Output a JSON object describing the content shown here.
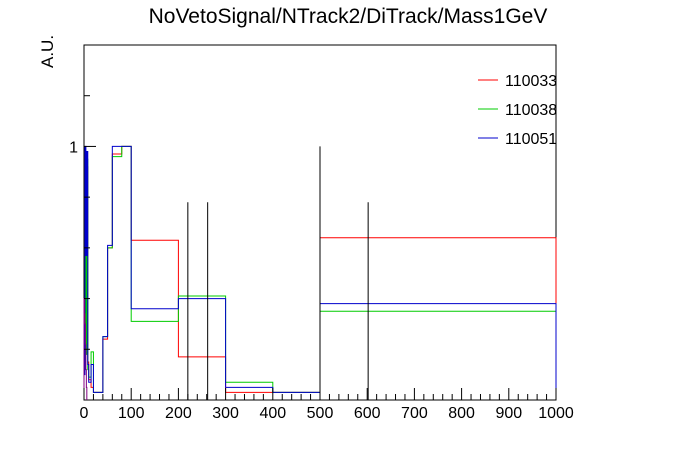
{
  "chart_data": {
    "type": "histogram",
    "title": "NoVetoSignal/NTrack2/DiTrack/Mass1GeV",
    "xlabel": "",
    "ylabel": "A.U.",
    "xlim": [
      0,
      1000
    ],
    "ylim": [
      0,
      1.4
    ],
    "x_ticks": [
      0,
      100,
      200,
      300,
      400,
      500,
      600,
      700,
      800,
      900,
      1000
    ],
    "y_ticks": [
      1
    ],
    "legend_position": "top-right",
    "series": [
      {
        "name": "110033",
        "color": "#ff0000",
        "bins": [
          {
            "x0": 0,
            "x1": 2,
            "y": 0.12
          },
          {
            "x0": 2,
            "x1": 4,
            "y": 0.98
          },
          {
            "x0": 4,
            "x1": 6,
            "y": 0.2
          },
          {
            "x0": 6,
            "x1": 8,
            "y": 0.92
          },
          {
            "x0": 8,
            "x1": 10,
            "y": 0.15
          },
          {
            "x0": 10,
            "x1": 15,
            "y": 0.08
          },
          {
            "x0": 15,
            "x1": 20,
            "y": 0.05
          },
          {
            "x0": 20,
            "x1": 30,
            "y": 0.03
          },
          {
            "x0": 30,
            "x1": 40,
            "y": 0.03
          },
          {
            "x0": 40,
            "x1": 50,
            "y": 0.24
          },
          {
            "x0": 50,
            "x1": 60,
            "y": 0.6
          },
          {
            "x0": 60,
            "x1": 80,
            "y": 0.97
          },
          {
            "x0": 80,
            "x1": 100,
            "y": 1.0
          },
          {
            "x0": 100,
            "x1": 200,
            "y": 0.63
          },
          {
            "x0": 200,
            "x1": 300,
            "y": 0.17
          },
          {
            "x0": 300,
            "x1": 400,
            "y": 0.03
          },
          {
            "x0": 400,
            "x1": 500,
            "y": 0.03
          },
          {
            "x0": 500,
            "x1": 1000,
            "y": 0.64
          }
        ]
      },
      {
        "name": "110038",
        "color": "#00cc00",
        "bins": [
          {
            "x0": 0,
            "x1": 2,
            "y": 0.15
          },
          {
            "x0": 2,
            "x1": 4,
            "y": 0.98
          },
          {
            "x0": 4,
            "x1": 6,
            "y": 0.18
          },
          {
            "x0": 6,
            "x1": 8,
            "y": 0.95
          },
          {
            "x0": 8,
            "x1": 10,
            "y": 0.12
          },
          {
            "x0": 10,
            "x1": 15,
            "y": 0.09
          },
          {
            "x0": 15,
            "x1": 20,
            "y": 0.19
          },
          {
            "x0": 20,
            "x1": 30,
            "y": 0.03
          },
          {
            "x0": 30,
            "x1": 40,
            "y": 0.03
          },
          {
            "x0": 40,
            "x1": 50,
            "y": 0.25
          },
          {
            "x0": 50,
            "x1": 60,
            "y": 0.6
          },
          {
            "x0": 60,
            "x1": 80,
            "y": 0.96
          },
          {
            "x0": 80,
            "x1": 100,
            "y": 1.0
          },
          {
            "x0": 100,
            "x1": 200,
            "y": 0.31
          },
          {
            "x0": 200,
            "x1": 300,
            "y": 0.41
          },
          {
            "x0": 300,
            "x1": 400,
            "y": 0.07
          },
          {
            "x0": 400,
            "x1": 500,
            "y": 0.03
          },
          {
            "x0": 500,
            "x1": 1000,
            "y": 0.35
          }
        ]
      },
      {
        "name": "110051",
        "color": "#0000cc",
        "bins": [
          {
            "x0": 0,
            "x1": 2,
            "y": 0.1
          },
          {
            "x0": 2,
            "x1": 4,
            "y": 1.0
          },
          {
            "x0": 4,
            "x1": 6,
            "y": 0.57
          },
          {
            "x0": 6,
            "x1": 8,
            "y": 0.98
          },
          {
            "x0": 8,
            "x1": 10,
            "y": 0.14
          },
          {
            "x0": 10,
            "x1": 15,
            "y": 0.07
          },
          {
            "x0": 15,
            "x1": 20,
            "y": 0.14
          },
          {
            "x0": 20,
            "x1": 30,
            "y": 0.03
          },
          {
            "x0": 30,
            "x1": 40,
            "y": 0.03
          },
          {
            "x0": 40,
            "x1": 50,
            "y": 0.25
          },
          {
            "x0": 50,
            "x1": 60,
            "y": 0.61
          },
          {
            "x0": 60,
            "x1": 80,
            "y": 1.0
          },
          {
            "x0": 80,
            "x1": 100,
            "y": 1.0
          },
          {
            "x0": 100,
            "x1": 200,
            "y": 0.36
          },
          {
            "x0": 200,
            "x1": 300,
            "y": 0.4
          },
          {
            "x0": 300,
            "x1": 400,
            "y": 0.05
          },
          {
            "x0": 400,
            "x1": 500,
            "y": 0.03
          },
          {
            "x0": 500,
            "x1": 1000,
            "y": 0.38
          }
        ]
      },
      {
        "name": "",
        "color": "#800080",
        "bins": [
          {
            "x0": 0,
            "x1": 1,
            "y": 0.4
          },
          {
            "x0": 1,
            "x1": 2,
            "y": 0.34
          },
          {
            "x0": 2,
            "x1": 3,
            "y": 0.3
          },
          {
            "x0": 3,
            "x1": 4,
            "y": 0.22
          },
          {
            "x0": 4,
            "x1": 5,
            "y": 0.12
          },
          {
            "x0": 5,
            "x1": 6,
            "y": 0.05
          }
        ]
      }
    ],
    "error_bars": [
      {
        "x": 220,
        "y_low": 0.0,
        "y_high": 0.78
      },
      {
        "x": 262,
        "y_low": 0.0,
        "y_high": 0.78
      },
      {
        "x": 500,
        "y_low": 0.0,
        "y_high": 1.0
      },
      {
        "x": 602,
        "y_low": 0.0,
        "y_high": 0.78
      }
    ]
  }
}
